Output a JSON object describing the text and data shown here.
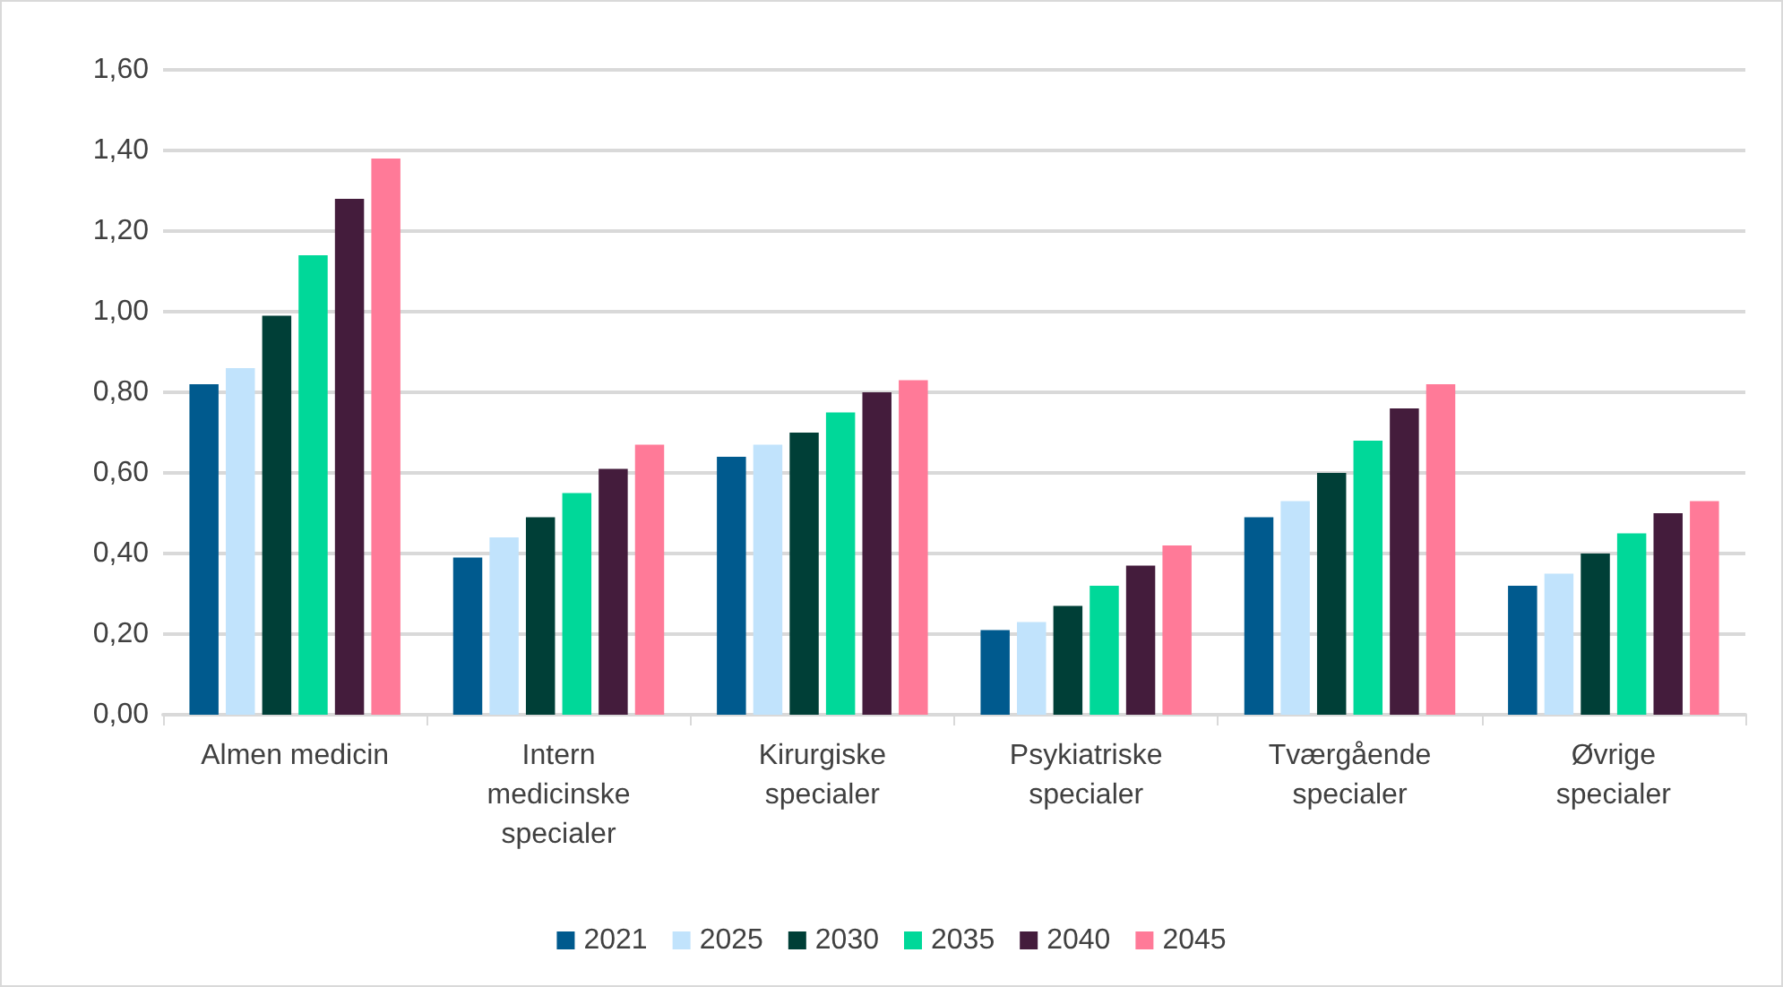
{
  "chart_data": {
    "type": "bar",
    "categories": [
      "Almen medicin",
      "Intern\nmedicinske\nspecialer",
      "Kirurgiske\nspecialer",
      "Psykiatriske\nspecialer",
      "Tværgående\nspecialer",
      "Øvrige\nspecialer"
    ],
    "series": [
      {
        "name": "2021",
        "color": "#005a8e",
        "values": [
          0.82,
          0.39,
          0.64,
          0.21,
          0.49,
          0.32
        ]
      },
      {
        "name": "2025",
        "color": "#c1e3fc",
        "values": [
          0.86,
          0.44,
          0.67,
          0.23,
          0.53,
          0.35
        ]
      },
      {
        "name": "2030",
        "color": "#003f37",
        "values": [
          0.99,
          0.49,
          0.7,
          0.27,
          0.6,
          0.4
        ]
      },
      {
        "name": "2035",
        "color": "#00d899",
        "values": [
          1.14,
          0.55,
          0.75,
          0.32,
          0.68,
          0.45
        ]
      },
      {
        "name": "2040",
        "color": "#441c3c",
        "values": [
          1.28,
          0.61,
          0.8,
          0.37,
          0.76,
          0.5
        ]
      },
      {
        "name": "2045",
        "color": "#ff7a98",
        "values": [
          1.38,
          0.67,
          0.83,
          0.42,
          0.82,
          0.53
        ]
      }
    ],
    "ylim": [
      0,
      1.6
    ],
    "yticks": [
      {
        "value": 0,
        "label": "0,00"
      },
      {
        "value": 0.2,
        "label": "0,20"
      },
      {
        "value": 0.4,
        "label": "0,40"
      },
      {
        "value": 0.6,
        "label": "0,60"
      },
      {
        "value": 0.8,
        "label": "0,80"
      },
      {
        "value": 1,
        "label": "1,00"
      },
      {
        "value": 1.2,
        "label": "1,20"
      },
      {
        "value": 1.4,
        "label": "1,40"
      },
      {
        "value": 1.6,
        "label": "1,60"
      }
    ],
    "grid": "y",
    "legend": "bottom"
  }
}
